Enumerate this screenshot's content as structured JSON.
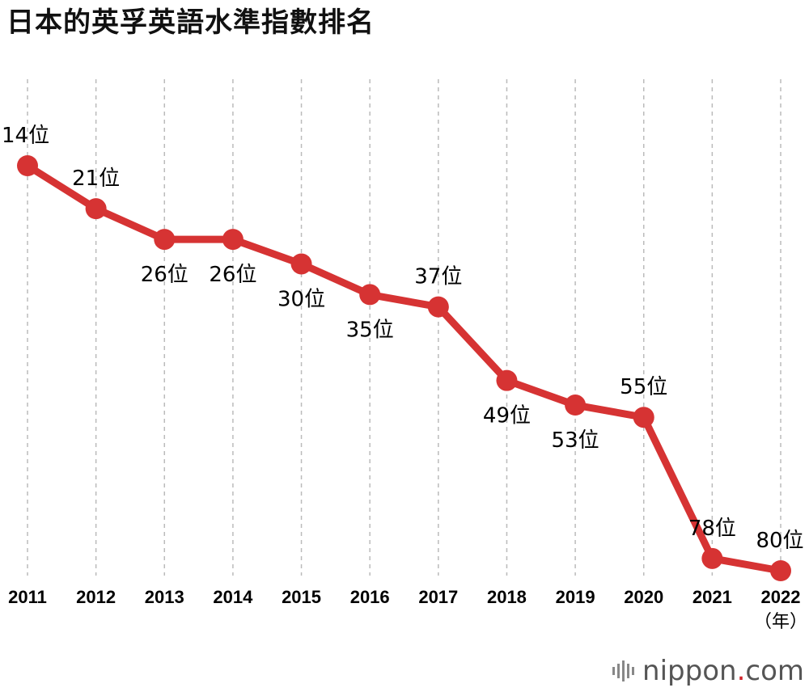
{
  "title": "日本的英孚英語水準指數排名",
  "chart_data": {
    "type": "line",
    "x": [
      "2011",
      "2012",
      "2013",
      "2014",
      "2015",
      "2016",
      "2017",
      "2018",
      "2019",
      "2020",
      "2021",
      "2022"
    ],
    "values": [
      14,
      21,
      26,
      26,
      30,
      35,
      37,
      49,
      53,
      55,
      78,
      80
    ],
    "data_labels": [
      "14位",
      "21位",
      "26位",
      "26位",
      "30位",
      "35位",
      "37位",
      "49位",
      "53位",
      "55位",
      "78位",
      "80位"
    ],
    "x_unit": "（年）",
    "y_inverted": true,
    "grid": "vertical dashed lines",
    "colors": {
      "line": "#d63333",
      "grid": "#bbbbbb"
    }
  },
  "brand": {
    "name": "nippon",
    "dot": ".",
    "suffix": "com"
  }
}
